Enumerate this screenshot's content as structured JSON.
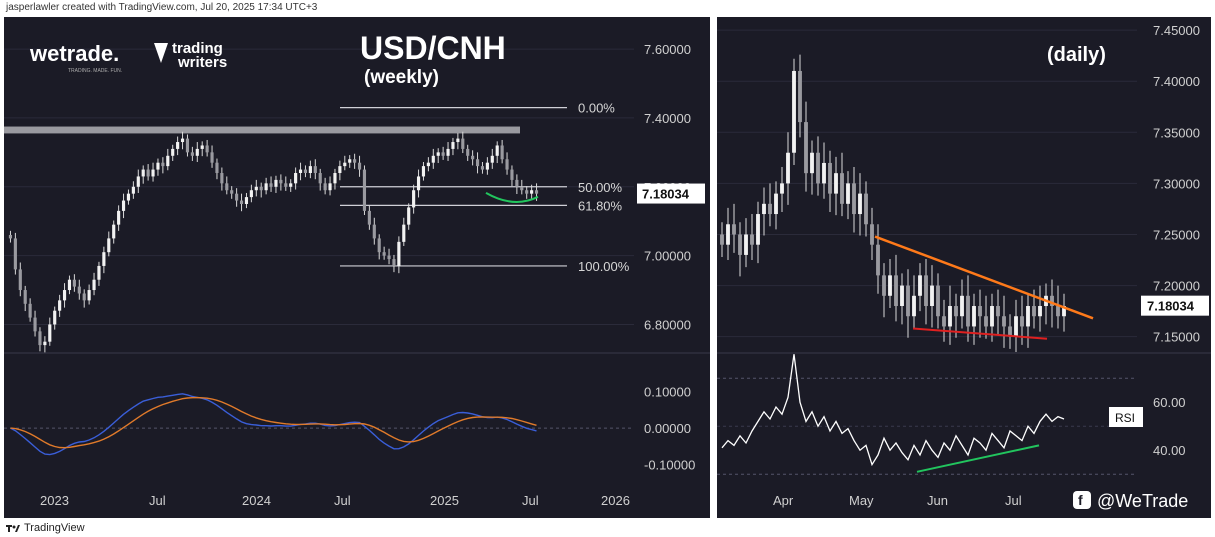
{
  "credit": "jasperlawler created with TradingView.com, Jul 20, 2025 17:34 UTC+3",
  "footer": {
    "brand": "TradingView"
  },
  "brand": {
    "wetrade": "wetrade.",
    "wetrade_tagline": "TRADING. MADE. FUN.",
    "trading_writers_line1": "trading",
    "trading_writers_line2": "writers",
    "social_handle": "@WeTrade"
  },
  "colors": {
    "panel_bg": "#1b1b26",
    "candle": "#d9d9d9",
    "macd": "#3a5ed8",
    "signal": "#e07a2a",
    "resistance_band": "#9a9aa0",
    "downtrend_line": "#ff7a1a",
    "support_line": "#e02020",
    "rsi_divergence": "#22c55e",
    "rsi_line": "#ffffff"
  },
  "chart_data": [
    {
      "type": "candlestick",
      "title": "USD/CNH",
      "subtitle": "(weekly)",
      "timeframe": "weekly",
      "x_ticks": [
        "2023",
        "Jul",
        "2024",
        "Jul",
        "2025",
        "Jul",
        "2026"
      ],
      "y_ticks": [
        "7.60000",
        "7.40000",
        "7.20000",
        "7.00000",
        "6.80000"
      ],
      "ylim": [
        6.72,
        7.67
      ],
      "last_price": "7.18034",
      "close_series": [
        7.05,
        6.96,
        6.9,
        6.86,
        6.82,
        6.78,
        6.74,
        6.75,
        6.8,
        6.84,
        6.87,
        6.9,
        6.93,
        6.91,
        6.89,
        6.87,
        6.9,
        6.93,
        6.97,
        7.01,
        7.05,
        7.09,
        7.13,
        7.16,
        7.18,
        7.2,
        7.23,
        7.25,
        7.23,
        7.25,
        7.27,
        7.26,
        7.29,
        7.31,
        7.33,
        7.34,
        7.3,
        7.29,
        7.31,
        7.32,
        7.3,
        7.27,
        7.24,
        7.21,
        7.19,
        7.18,
        7.16,
        7.15,
        7.17,
        7.19,
        7.2,
        7.19,
        7.21,
        7.2,
        7.22,
        7.21,
        7.2,
        7.21,
        7.24,
        7.25,
        7.24,
        7.26,
        7.24,
        7.21,
        7.19,
        7.21,
        7.24,
        7.26,
        7.27,
        7.28,
        7.27,
        7.25,
        7.13,
        7.09,
        7.05,
        7.01,
        7.0,
        6.99,
        6.97,
        7.04,
        7.09,
        7.14,
        7.19,
        7.23,
        7.26,
        7.27,
        7.29,
        7.3,
        7.29,
        7.31,
        7.33,
        7.34,
        7.31,
        7.29,
        7.28,
        7.26,
        7.25,
        7.27,
        7.29,
        7.32,
        7.28,
        7.25,
        7.22,
        7.2,
        7.19,
        7.18,
        7.19,
        7.18
      ],
      "fibonacci": {
        "swing_high": 7.43,
        "swing_low": 6.97,
        "levels": [
          {
            "label": "0.00%",
            "value": 7.43
          },
          {
            "label": "50.00%",
            "value": 7.2
          },
          {
            "label": "61.80%",
            "value": 7.146
          },
          {
            "label": "100.00%",
            "value": 6.97
          }
        ]
      },
      "resistance_zone": [
        7.355,
        7.375
      ],
      "indicator": {
        "name": "MACD",
        "y_ticks": [
          "0.10000",
          "0.00000",
          "-0.10000"
        ],
        "ylim": [
          -0.14,
          0.19
        ],
        "zero_line": 0
      }
    },
    {
      "type": "candlestick",
      "title": "(daily)",
      "timeframe": "daily",
      "x_ticks": [
        "Apr",
        "May",
        "Jun",
        "Jul"
      ],
      "y_ticks": [
        "7.45000",
        "7.40000",
        "7.35000",
        "7.30000",
        "7.25000",
        "7.20000",
        "7.15000"
      ],
      "ylim": [
        7.135,
        7.455
      ],
      "last_price": "7.18034",
      "close_series": [
        7.24,
        7.26,
        7.25,
        7.23,
        7.25,
        7.24,
        7.27,
        7.28,
        7.27,
        7.29,
        7.3,
        7.33,
        7.41,
        7.36,
        7.31,
        7.33,
        7.3,
        7.32,
        7.29,
        7.31,
        7.28,
        7.3,
        7.27,
        7.29,
        7.26,
        7.24,
        7.21,
        7.19,
        7.21,
        7.18,
        7.2,
        7.17,
        7.19,
        7.21,
        7.18,
        7.2,
        7.17,
        7.16,
        7.18,
        7.17,
        7.19,
        7.16,
        7.18,
        7.17,
        7.16,
        7.18,
        7.17,
        7.16,
        7.15,
        7.17,
        7.16,
        7.18,
        7.17,
        7.18,
        7.19,
        7.18,
        7.17,
        7.18
      ],
      "downtrend_line": {
        "from": 7.248,
        "to": 7.168
      },
      "support_line": {
        "from": 7.158,
        "to": 7.148
      },
      "indicator": {
        "name": "RSI",
        "label": "RSI",
        "y_ticks": [
          "60.00",
          "40.00"
        ],
        "ylim": [
          28,
          78
        ],
        "bands": [
          70,
          30
        ],
        "series": [
          41,
          44,
          42,
          46,
          43,
          48,
          52,
          56,
          53,
          58,
          55,
          62,
          80,
          60,
          52,
          56,
          50,
          54,
          48,
          52,
          47,
          49,
          44,
          40,
          42,
          34,
          38,
          45,
          40,
          43,
          39,
          36,
          42,
          38,
          44,
          40,
          37,
          43,
          40,
          46,
          42,
          38,
          45,
          43,
          40,
          47,
          44,
          41,
          48,
          46,
          44,
          50,
          47,
          52,
          55,
          52,
          54,
          53
        ],
        "divergence_line": {
          "from": 31,
          "to": 42
        }
      }
    }
  ]
}
